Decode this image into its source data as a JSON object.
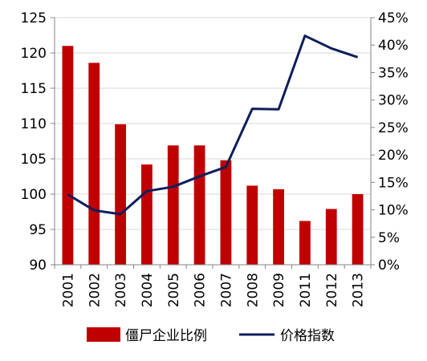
{
  "chart_data": {
    "type": "bar+line",
    "categories": [
      "2001",
      "2002",
      "2003",
      "2004",
      "2005",
      "2006",
      "2007",
      "2008",
      "2009",
      "2011",
      "2012",
      "2013"
    ],
    "series": [
      {
        "name": "僵尸企业比例",
        "type": "bar",
        "axis": "left",
        "color": "#C00000",
        "values": [
          121,
          118.6,
          109.9,
          104.2,
          106.9,
          106.9,
          104.8,
          101.2,
          100.7,
          96.2,
          97.9,
          100
        ]
      },
      {
        "name": "价格指数",
        "type": "line",
        "axis": "right",
        "color": "#0D1E5B",
        "values": [
          0.128,
          0.099,
          0.092,
          0.134,
          0.142,
          0.161,
          0.178,
          0.284,
          0.283,
          0.417,
          0.394,
          0.378
        ]
      }
    ],
    "y_left": {
      "min": 90,
      "max": 125,
      "step": 5,
      "tick_labels": [
        "90",
        "95",
        "100",
        "105",
        "110",
        "115",
        "120",
        "125"
      ]
    },
    "y_right": {
      "min": 0,
      "max": 0.45,
      "step": 0.05,
      "tick_labels": [
        "0%",
        "5%",
        "10%",
        "15%",
        "20%",
        "25%",
        "30%",
        "35%",
        "40%",
        "45%"
      ]
    },
    "grid": true,
    "legend_position": "bottom",
    "title": "",
    "xlabel": "",
    "ylabel": ""
  },
  "legend": {
    "bar_label": "僵尸企业比例",
    "line_label": "价格指数"
  }
}
